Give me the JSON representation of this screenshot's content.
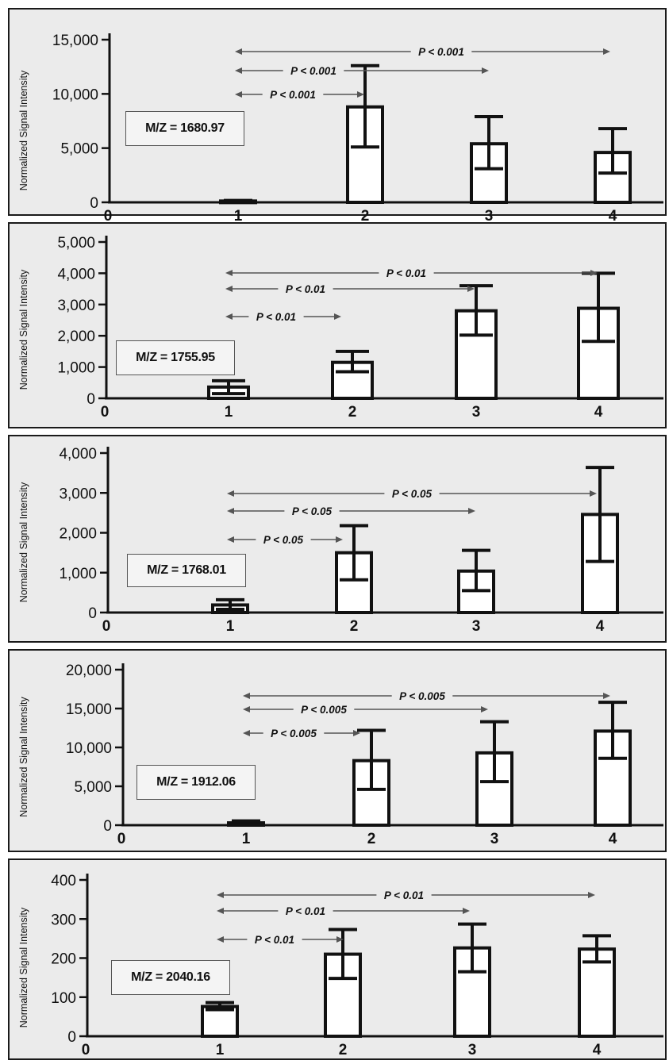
{
  "chart_data": [
    {
      "type": "bar",
      "ylabel": "Normalized Signal Intensity",
      "box_label": "M/Z = 1680.97",
      "x_tick_labels": [
        "0",
        "1",
        "2",
        "3",
        "4"
      ],
      "y_tick_labels": [
        "0",
        "5,000",
        "10,000",
        "15,000"
      ],
      "y_ticks": [
        0,
        5000,
        10000,
        15000
      ],
      "ylim": [
        0,
        15000
      ],
      "categories": [
        "1",
        "2",
        "3",
        "4"
      ],
      "values": [
        120,
        8800,
        5400,
        4600
      ],
      "error_low": [
        80,
        5100,
        3100,
        2700
      ],
      "error_high": [
        170,
        12600,
        7900,
        6800
      ],
      "comparisons": [
        {
          "from": "1",
          "to": "2",
          "label": "P < 0.001"
        },
        {
          "from": "1",
          "to": "3",
          "label": "P < 0.001"
        },
        {
          "from": "1",
          "to": "4",
          "label": "P < 0.001"
        }
      ],
      "grid": false
    },
    {
      "type": "bar",
      "ylabel": "Normalized Signal Intensity",
      "box_label": "M/Z = 1755.95",
      "x_tick_labels": [
        "0",
        "1",
        "2",
        "3",
        "4"
      ],
      "y_tick_labels": [
        "0",
        "1,000",
        "2,000",
        "3,000",
        "4,000",
        "5,000"
      ],
      "y_ticks": [
        0,
        1000,
        2000,
        3000,
        4000,
        5000
      ],
      "ylim": [
        0,
        5000
      ],
      "categories": [
        "1",
        "2",
        "3",
        "4"
      ],
      "values": [
        360,
        1150,
        2800,
        2880
      ],
      "error_low": [
        150,
        850,
        2020,
        1820
      ],
      "error_high": [
        560,
        1500,
        3600,
        4000
      ],
      "comparisons": [
        {
          "from": "1",
          "to": "2",
          "label": "P < 0.01"
        },
        {
          "from": "1",
          "to": "3",
          "label": "P < 0.01"
        },
        {
          "from": "1",
          "to": "4",
          "label": "P < 0.01"
        }
      ],
      "grid": false
    },
    {
      "type": "bar",
      "ylabel": "Normalized Signal Intensity",
      "box_label": "M/Z = 1768.01",
      "x_tick_labels": [
        "0",
        "1",
        "2",
        "3",
        "4"
      ],
      "y_tick_labels": [
        "0",
        "1,000",
        "2,000",
        "3,000",
        "4,000"
      ],
      "y_ticks": [
        0,
        1000,
        2000,
        3000,
        4000
      ],
      "ylim": [
        0,
        4000
      ],
      "categories": [
        "1",
        "2",
        "3",
        "4"
      ],
      "values": [
        190,
        1500,
        1040,
        2460
      ],
      "error_low": [
        80,
        820,
        550,
        1280
      ],
      "error_high": [
        320,
        2180,
        1560,
        3640
      ],
      "comparisons": [
        {
          "from": "1",
          "to": "2",
          "label": "P < 0.05"
        },
        {
          "from": "1",
          "to": "3",
          "label": "P < 0.05"
        },
        {
          "from": "1",
          "to": "4",
          "label": "P < 0.05"
        }
      ],
      "grid": false
    },
    {
      "type": "bar",
      "ylabel": "Normalized Signal Intensity",
      "box_label": "M/Z = 1912.06",
      "x_tick_labels": [
        "0",
        "1",
        "2",
        "3",
        "4"
      ],
      "y_tick_labels": [
        "0",
        "5,000",
        "10,000",
        "15,000",
        "20,000"
      ],
      "y_ticks": [
        0,
        5000,
        10000,
        15000,
        20000
      ],
      "ylim": [
        0,
        20000
      ],
      "categories": [
        "1",
        "2",
        "3",
        "4"
      ],
      "values": [
        300,
        8300,
        9300,
        12100
      ],
      "error_low": [
        80,
        4600,
        5600,
        8600
      ],
      "error_high": [
        550,
        12200,
        13300,
        15800
      ],
      "comparisons": [
        {
          "from": "1",
          "to": "2",
          "label": "P < 0.005"
        },
        {
          "from": "1",
          "to": "3",
          "label": "P < 0.005"
        },
        {
          "from": "1",
          "to": "4",
          "label": "P < 0.005"
        }
      ],
      "grid": false
    },
    {
      "type": "bar",
      "ylabel": "Normalized Signal Intensity",
      "box_label": "M/Z = 2040.16",
      "x_tick_labels": [
        "0",
        "1",
        "2",
        "3",
        "4"
      ],
      "y_tick_labels": [
        "0",
        "100",
        "200",
        "300",
        "400"
      ],
      "y_ticks": [
        0,
        100,
        200,
        300,
        400
      ],
      "ylim": [
        0,
        400
      ],
      "categories": [
        "1",
        "2",
        "3",
        "4"
      ],
      "values": [
        76,
        210,
        226,
        223
      ],
      "error_low": [
        68,
        148,
        165,
        190
      ],
      "error_high": [
        86,
        273,
        287,
        257
      ],
      "comparisons": [
        {
          "from": "1",
          "to": "2",
          "label": "P < 0.01"
        },
        {
          "from": "1",
          "to": "3",
          "label": "P < 0.01"
        },
        {
          "from": "1",
          "to": "4",
          "label": "P < 0.01"
        }
      ],
      "grid": false
    }
  ]
}
